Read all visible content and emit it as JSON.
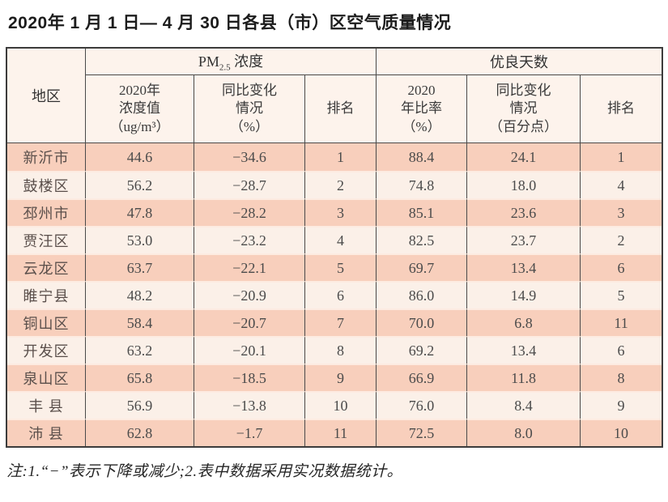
{
  "page": {
    "title": "2020年 1 月 1 日— 4 月 30 日各县（市）区空气质量情况",
    "footnote": "注:1.“−”表示下降或减少;2.表中数据采用实况数据统计。"
  },
  "table": {
    "region_header": "地区",
    "pm_group": {
      "prefix": "PM",
      "sub": "2.5",
      "suffix": " 浓度"
    },
    "days_group": "优良天数",
    "sub_headers": [
      "2020年\n浓度值\n（ug/m³）",
      "同比变化\n情况\n（%）",
      "排名",
      "2020\n年比率\n（%）",
      "同比变化\n情况\n（百分点）",
      "排名"
    ],
    "rows": [
      {
        "region": "新沂市",
        "pm_value": "44.6",
        "pm_change": "−34.6",
        "pm_rank": "1",
        "days_rate": "88.4",
        "days_change": "24.1",
        "days_rank": "1"
      },
      {
        "region": "鼓楼区",
        "pm_value": "56.2",
        "pm_change": "−28.7",
        "pm_rank": "2",
        "days_rate": "74.8",
        "days_change": "18.0",
        "days_rank": "4"
      },
      {
        "region": "邳州市",
        "pm_value": "47.8",
        "pm_change": "−28.2",
        "pm_rank": "3",
        "days_rate": "85.1",
        "days_change": "23.6",
        "days_rank": "3"
      },
      {
        "region": "贾汪区",
        "pm_value": "53.0",
        "pm_change": "−23.2",
        "pm_rank": "4",
        "days_rate": "82.5",
        "days_change": "23.7",
        "days_rank": "2"
      },
      {
        "region": "云龙区",
        "pm_value": "63.7",
        "pm_change": "−22.1",
        "pm_rank": "5",
        "days_rate": "69.7",
        "days_change": "13.4",
        "days_rank": "6"
      },
      {
        "region": "睢宁县",
        "pm_value": "48.2",
        "pm_change": "−20.9",
        "pm_rank": "6",
        "days_rate": "86.0",
        "days_change": "14.9",
        "days_rank": "5"
      },
      {
        "region": "铜山区",
        "pm_value": "58.4",
        "pm_change": "−20.7",
        "pm_rank": "7",
        "days_rate": "70.0",
        "days_change": "6.8",
        "days_rank": "11"
      },
      {
        "region": "开发区",
        "pm_value": "63.2",
        "pm_change": "−20.1",
        "pm_rank": "8",
        "days_rate": "69.2",
        "days_change": "13.4",
        "days_rank": "6"
      },
      {
        "region": "泉山区",
        "pm_value": "65.8",
        "pm_change": "−18.5",
        "pm_rank": "9",
        "days_rate": "66.9",
        "days_change": "11.8",
        "days_rank": "8"
      },
      {
        "region": "丰 县",
        "pm_value": "56.9",
        "pm_change": "−13.8",
        "pm_rank": "10",
        "days_rate": "76.0",
        "days_change": "8.4",
        "days_rank": "9"
      },
      {
        "region": "沛 县",
        "pm_value": "62.8",
        "pm_change": "−1.7",
        "pm_rank": "11",
        "days_rate": "72.5",
        "days_change": "8.0",
        "days_rank": "10"
      }
    ]
  },
  "colors": {
    "row_peach": "#f8cfbc",
    "row_cream": "#fbf0e8",
    "header_bg": "#fdf3ec",
    "border_dark": "#3c3c3c",
    "row_separator": "#fdebe1"
  }
}
